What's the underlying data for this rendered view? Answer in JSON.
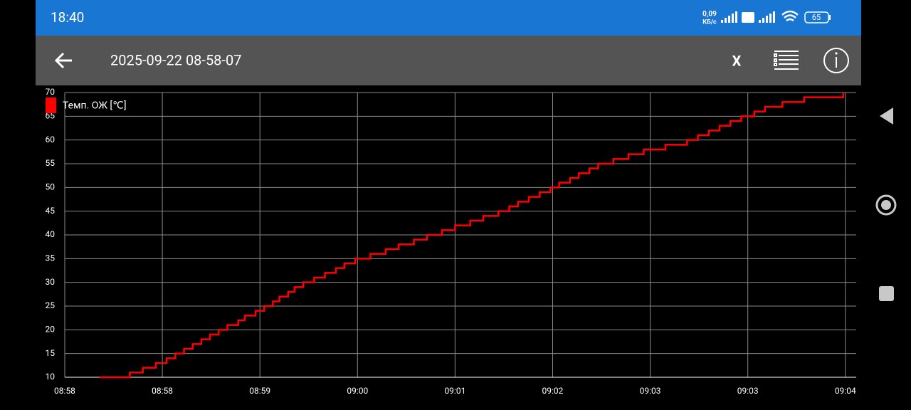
{
  "status_bar": {
    "time": "18:40",
    "network_speed": "0,09",
    "network_unit": "КБ/с",
    "battery": "65"
  },
  "toolbar": {
    "title": "2025-09-22 08-58-07",
    "close": "X"
  },
  "chart_data": {
    "type": "line",
    "step": true,
    "grid": true,
    "legend": "top-left",
    "x": [
      16,
      30,
      36,
      42,
      47,
      51,
      55,
      59,
      63,
      67,
      71,
      75,
      80,
      83,
      88,
      92,
      96,
      99,
      103,
      106,
      110,
      115,
      120,
      125,
      129,
      134,
      141,
      148,
      154,
      161,
      167,
      174,
      180,
      187,
      193,
      200,
      205,
      209,
      214,
      219,
      224,
      228,
      233,
      237,
      242,
      246,
      253,
      260,
      267,
      277,
      287,
      292,
      297,
      302,
      307,
      312,
      318,
      323,
      331,
      341,
      359
    ],
    "series": [
      {
        "name": "Темп. ОЖ [℃]",
        "color": "#ff0000",
        "values": [
          10,
          11,
          12,
          13,
          14,
          15,
          16,
          17,
          18,
          19,
          20,
          21,
          22,
          23,
          24,
          25,
          26,
          27,
          28,
          29,
          30,
          31,
          32,
          33,
          34,
          35,
          36,
          37,
          38,
          39,
          40,
          41,
          42,
          43,
          44,
          45,
          46,
          47,
          48,
          49,
          50,
          51,
          52,
          53,
          54,
          55,
          56,
          57,
          58,
          59,
          60,
          61,
          62,
          63,
          64,
          65,
          66,
          67,
          68,
          69,
          70
        ]
      }
    ],
    "xlim": [
      0,
      365
    ],
    "xticks": [
      {
        "value": 0,
        "label": "08:58"
      },
      {
        "value": 45,
        "label": "08:58"
      },
      {
        "value": 90,
        "label": "08:59"
      },
      {
        "value": 135,
        "label": "09:00"
      },
      {
        "value": 180,
        "label": "09:01"
      },
      {
        "value": 225,
        "label": "09:02"
      },
      {
        "value": 270,
        "label": "09:03"
      },
      {
        "value": 315,
        "label": "09:03"
      },
      {
        "value": 360,
        "label": "09:04"
      }
    ],
    "ylim": [
      10,
      70
    ],
    "yticks": [
      10,
      15,
      20,
      25,
      30,
      35,
      40,
      45,
      50,
      55,
      60,
      65,
      70
    ]
  }
}
